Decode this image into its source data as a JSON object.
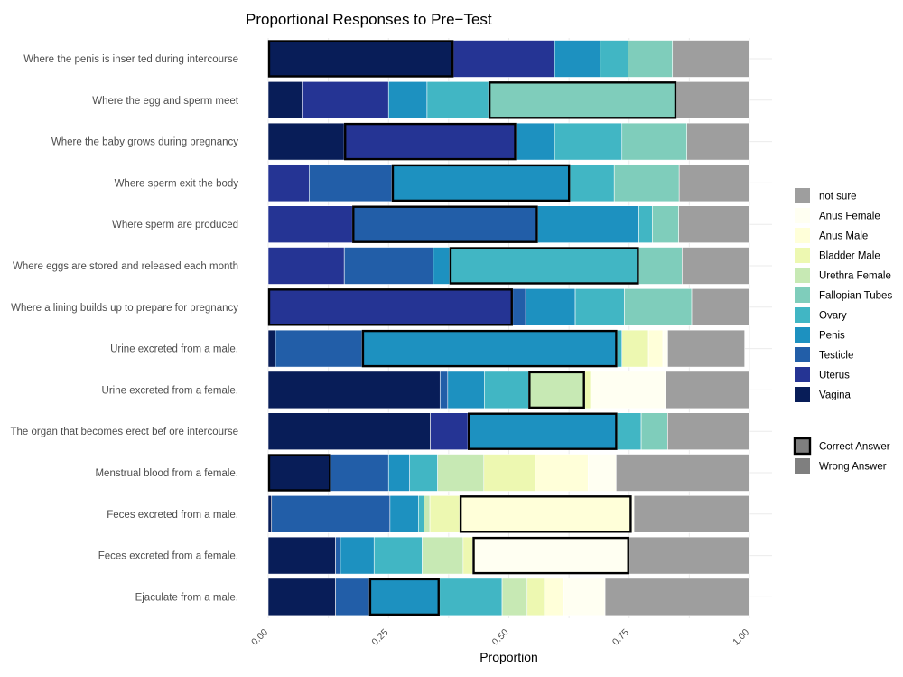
{
  "chart_data": {
    "type": "bar",
    "orientation": "horizontal",
    "stacked": true,
    "title": "Proportional Responses to Pre−Test",
    "xlabel": "Proportion",
    "ylabel": "",
    "xlim": [
      0,
      1
    ],
    "x_ticks": [
      "0.00",
      "0.25",
      "0.50",
      "0.75",
      "1.00"
    ],
    "grid": true,
    "legend_position": "right",
    "series_order": [
      "Vagina",
      "Uterus",
      "Testicle",
      "Penis",
      "Ovary",
      "Fallopian Tubes",
      "Urethra Female",
      "Bladder Male",
      "Anus Male",
      "Anus Female",
      "not sure"
    ],
    "legend_order": [
      "not sure",
      "Anus Female",
      "Anus Male",
      "Bladder Male",
      "Urethra Female",
      "Fallopian Tubes",
      "Ovary",
      "Penis",
      "Testicle",
      "Uterus",
      "Vagina"
    ],
    "colors": {
      "Vagina": "#081d58",
      "Uterus": "#253494",
      "Testicle": "#225ea8",
      "Penis": "#1d91c0",
      "Ovary": "#41b6c4",
      "Fallopian Tubes": "#7fcdbb",
      "Urethra Female": "#c7e9b4",
      "Bladder Male": "#edf8b1",
      "Anus Male": "#ffffd9",
      "Anus Female": "#fffff2",
      "not sure": "#9e9e9e"
    },
    "outline_legend": [
      {
        "label": "Correct Answer",
        "fill": "#7f7f7f",
        "bold_border": true
      },
      {
        "label": "Wrong Answer",
        "fill": "#7f7f7f",
        "bold_border": false
      }
    ],
    "categories": [
      "Where the penis is inser ted during intercourse",
      "Where the egg and sperm meet",
      "Where the baby grows during pregnancy",
      "Where sperm exit the body",
      "Where sperm are produced",
      "Where eggs are stored and released each month",
      "Where a lining builds up to prepare for pregnancy",
      "Urine excreted from a male.",
      "Urine excreted from a female.",
      "The organ that becomes erect bef ore intercourse",
      "Menstrual blood from a female.",
      "Feces excreted from a male.",
      "Feces excreted from a female.",
      "Ejaculate from a male."
    ],
    "rows": [
      {
        "correct": "Vagina",
        "segments": [
          [
            "Vagina",
            0.385
          ],
          [
            "Uterus",
            0.21
          ],
          [
            "Penis",
            0.095
          ],
          [
            "Ovary",
            0.058
          ],
          [
            "Fallopian Tubes",
            0.092
          ],
          [
            "not sure",
            0.16
          ]
        ]
      },
      {
        "correct": "Fallopian Tubes",
        "segments": [
          [
            "Vagina",
            0.07
          ],
          [
            "Uterus",
            0.18
          ],
          [
            "Penis",
            0.08
          ],
          [
            "Ovary",
            0.128
          ],
          [
            "Fallopian Tubes",
            0.39
          ],
          [
            "not sure",
            0.152
          ]
        ]
      },
      {
        "correct": "Uterus",
        "segments": [
          [
            "Vagina",
            0.158
          ],
          [
            "Uterus",
            0.357
          ],
          [
            "Penis",
            0.08
          ],
          [
            "Ovary",
            0.14
          ],
          [
            "Fallopian Tubes",
            0.135
          ],
          [
            "not sure",
            0.13
          ]
        ]
      },
      {
        "correct": "Penis",
        "segments": [
          [
            "Uterus",
            0.085
          ],
          [
            "Testicle",
            0.172
          ],
          [
            "Penis",
            0.37
          ],
          [
            "Ovary",
            0.092
          ],
          [
            "Fallopian Tubes",
            0.135
          ],
          [
            "not sure",
            0.146
          ]
        ]
      },
      {
        "correct": "Testicle",
        "segments": [
          [
            "Uterus",
            0.175
          ],
          [
            "Testicle",
            0.385
          ],
          [
            "Penis",
            0.21
          ],
          [
            "Ovary",
            0.028
          ],
          [
            "Fallopian Tubes",
            0.055
          ],
          [
            "not sure",
            0.147
          ]
        ]
      },
      {
        "correct": "Ovary",
        "segments": [
          [
            "Uterus",
            0.158
          ],
          [
            "Testicle",
            0.185
          ],
          [
            "Penis",
            0.034
          ],
          [
            "Ovary",
            0.393
          ],
          [
            "Fallopian Tubes",
            0.09
          ],
          [
            "not sure",
            0.14
          ]
        ]
      },
      {
        "correct": "Uterus",
        "segments": [
          [
            "Uterus",
            0.508
          ],
          [
            "Testicle",
            0.027
          ],
          [
            "Penis",
            0.103
          ],
          [
            "Ovary",
            0.102
          ],
          [
            "Fallopian Tubes",
            0.14
          ],
          [
            "not sure",
            0.12
          ]
        ]
      },
      {
        "correct": "Penis",
        "segments": [
          [
            "Vagina",
            0.015
          ],
          [
            "Testicle",
            0.18
          ],
          [
            "Penis",
            0.53
          ],
          [
            "Ovary",
            0.01
          ],
          [
            "Bladder Male",
            0.055
          ],
          [
            "Anus Male",
            0.03
          ],
          [
            "Anus Female",
            0.01
          ],
          [
            "not sure",
            0.16
          ]
        ]
      },
      {
        "correct": "Urethra Female",
        "segments": [
          [
            "Vagina",
            0.357
          ],
          [
            "Testicle",
            0.016
          ],
          [
            "Penis",
            0.076
          ],
          [
            "Ovary",
            0.092
          ],
          [
            "Urethra Female",
            0.117
          ],
          [
            "Bladder Male",
            0.012
          ],
          [
            "Anus Female",
            0.155
          ],
          [
            "not sure",
            0.175
          ]
        ]
      },
      {
        "correct": "Penis",
        "segments": [
          [
            "Vagina",
            0.337
          ],
          [
            "Uterus",
            0.078
          ],
          [
            "Penis",
            0.31
          ],
          [
            "Ovary",
            0.05
          ],
          [
            "Fallopian Tubes",
            0.055
          ],
          [
            "not sure",
            0.17
          ]
        ]
      },
      {
        "correct": "Vagina",
        "segments": [
          [
            "Vagina",
            0.13
          ],
          [
            "Testicle",
            0.12
          ],
          [
            "Penis",
            0.044
          ],
          [
            "Ovary",
            0.058
          ],
          [
            "Urethra Female",
            0.096
          ],
          [
            "Bladder Male",
            0.107
          ],
          [
            "Anus Male",
            0.11
          ],
          [
            "Anus Female",
            0.058
          ],
          [
            "not sure",
            0.277
          ]
        ]
      },
      {
        "correct": "Anus Male",
        "segments": [
          [
            "Vagina",
            0.007
          ],
          [
            "Testicle",
            0.246
          ],
          [
            "Penis",
            0.059
          ],
          [
            "Ovary",
            0.012
          ],
          [
            "Urethra Female",
            0.012
          ],
          [
            "Bladder Male",
            0.062
          ],
          [
            "Anus Male",
            0.357
          ],
          [
            "Anus Female",
            0.005
          ],
          [
            "not sure",
            0.24
          ]
        ]
      },
      {
        "correct": "Anus Female",
        "segments": [
          [
            "Vagina",
            0.14
          ],
          [
            "Testicle",
            0.01
          ],
          [
            "Penis",
            0.07
          ],
          [
            "Ovary",
            0.1
          ],
          [
            "Urethra Female",
            0.085
          ],
          [
            "Bladder Male",
            0.02
          ],
          [
            "Anus Female",
            0.325
          ],
          [
            "not sure",
            0.25
          ]
        ]
      },
      {
        "correct": "Penis",
        "segments": [
          [
            "Vagina",
            0.14
          ],
          [
            "Testicle",
            0.07
          ],
          [
            "Penis",
            0.146
          ],
          [
            "Ovary",
            0.13
          ],
          [
            "Urethra Female",
            0.052
          ],
          [
            "Bladder Male",
            0.036
          ],
          [
            "Anus Male",
            0.04
          ],
          [
            "Anus Female",
            0.086
          ],
          [
            "not sure",
            0.3
          ]
        ]
      }
    ]
  }
}
